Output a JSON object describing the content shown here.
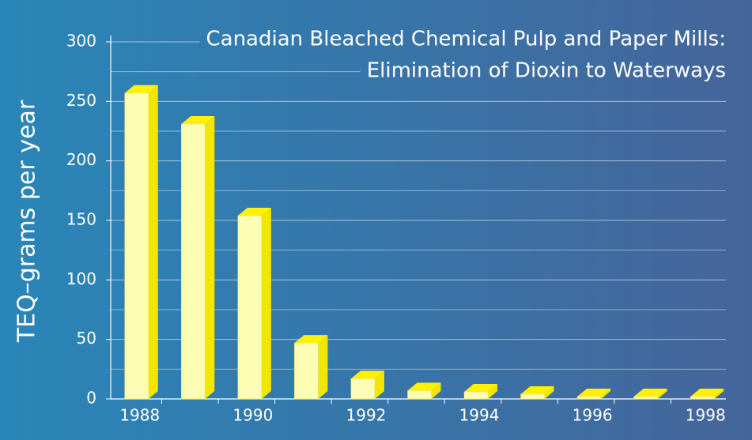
{
  "chart_data": {
    "type": "bar3d",
    "title": [
      "Canadian Bleached Chemical Pulp and Paper Mills:",
      "Elimination of Dioxin to Waterways"
    ],
    "ylabel": "TEQ–grams per year",
    "categories": [
      "1988",
      null,
      "1990",
      null,
      "1992",
      null,
      "1994",
      null,
      "1996",
      null,
      "1998"
    ],
    "values": [
      257,
      231,
      154,
      47,
      17,
      7,
      6,
      4,
      2,
      2,
      2
    ],
    "color": "#fdfdb4",
    "side_color": "#f2e600",
    "top_color": "#fff200",
    "ylim": [
      0,
      300
    ],
    "yticks": [
      0,
      50,
      100,
      150,
      200,
      250,
      300
    ],
    "minor_grid": [
      25,
      75,
      125,
      175,
      225,
      275
    ],
    "grid": true
  }
}
